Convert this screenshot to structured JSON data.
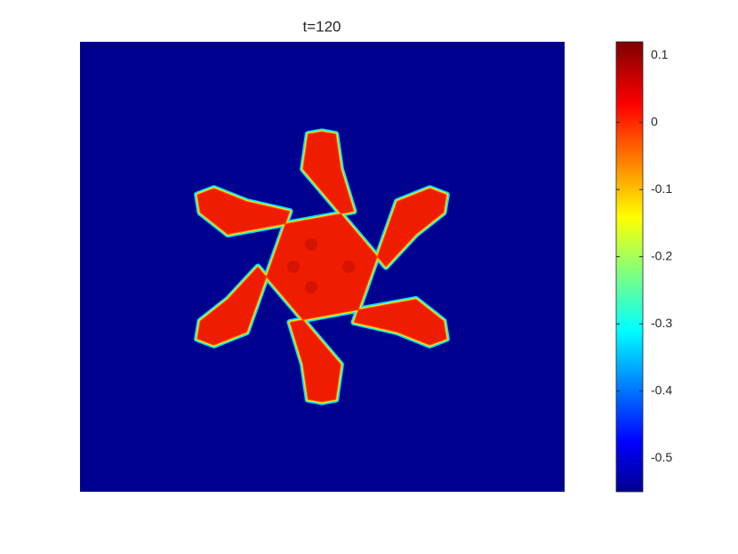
{
  "chart_data": {
    "type": "heatmap",
    "title": "t=120",
    "colormap": "jet",
    "clim": [
      -0.55,
      0.12
    ],
    "cticks": [
      -0.5,
      -0.4,
      -0.3,
      -0.2,
      -0.1,
      0,
      0.1
    ]
  }
}
